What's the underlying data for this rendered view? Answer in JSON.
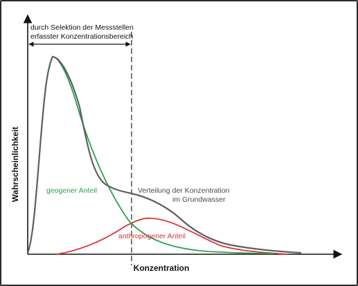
{
  "diagram": {
    "selection_note": {
      "line1": "durch Selektion der Messstellen",
      "line2": "erfasster Konzentrationsbereich"
    },
    "y_axis_label": "Wahrscheinlichkeit",
    "x_axis_label": "Konzentration",
    "curves": {
      "geogenic": {
        "label": "geogener Anteil",
        "color": "#2e9e4f"
      },
      "anthropogenic": {
        "label": "anthropogener Anteil",
        "color": "#d8353a"
      },
      "total": {
        "label_line1": "Verteilung der Konzentration",
        "label_line2": "im Grundwasser",
        "color": "#5f5f5f"
      }
    }
  }
}
